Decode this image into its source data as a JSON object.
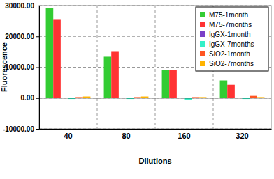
{
  "chart_data": {
    "type": "bar",
    "x_label": "Dilutions",
    "y_label": "Fluorescence",
    "categories": [
      "40",
      "80",
      "160",
      "320"
    ],
    "series": [
      {
        "name": "M75-1month",
        "color": "#33cc33",
        "values": [
          29300,
          13400,
          9000,
          5700
        ]
      },
      {
        "name": "M75-7months",
        "color": "#ff3333",
        "values": [
          25600,
          15200,
          9000,
          4300
        ]
      },
      {
        "name": "IgGX-1month",
        "color": "#7a3fc8",
        "values": [
          100,
          100,
          50,
          50
        ]
      },
      {
        "name": "IgGX-7months",
        "color": "#33f0c8",
        "values": [
          -300,
          -300,
          -500,
          -300
        ]
      },
      {
        "name": "SiO2-1month",
        "color": "#ff5522",
        "values": [
          300,
          300,
          300,
          700
        ]
      },
      {
        "name": "SiO2-7months",
        "color": "#ffb300",
        "values": [
          500,
          500,
          300,
          300
        ]
      }
    ],
    "ylim": [
      -10000,
      30000
    ],
    "yticks": [
      {
        "value": -10000,
        "label": "-10000.00"
      },
      {
        "value": 0,
        "label": "0.00"
      },
      {
        "value": 10000,
        "label": "10000.00"
      },
      {
        "value": 20000,
        "label": "20000.00"
      },
      {
        "value": 30000,
        "label": "30000.00"
      }
    ],
    "grid": true,
    "legend": "top-right"
  }
}
